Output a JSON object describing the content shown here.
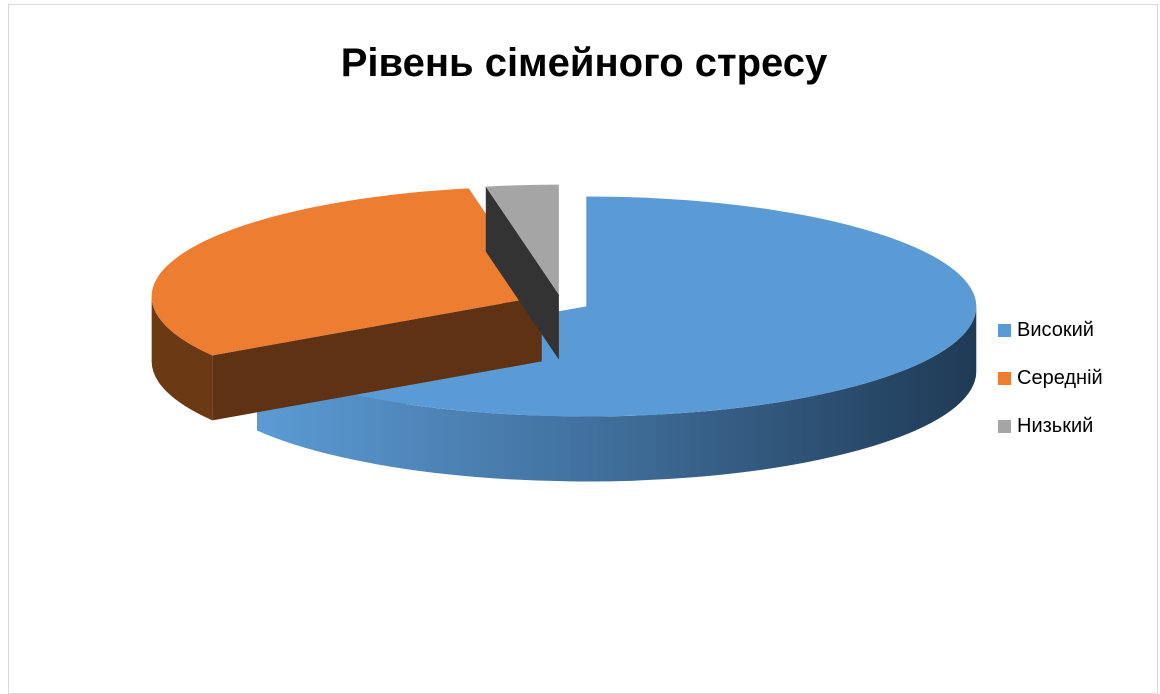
{
  "chart_data": {
    "type": "pie",
    "title": "Рівень сімейного стресу",
    "categories": [
      "Високий",
      "Середній",
      "Низький"
    ],
    "values": [
      66,
      31,
      3
    ],
    "colors": [
      "#5b9bd5",
      "#ed7d31",
      "#a5a5a5"
    ],
    "legend_position": "right",
    "style": "3d-exploded"
  }
}
